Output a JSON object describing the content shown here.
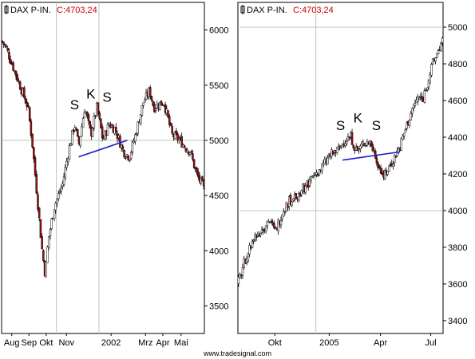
{
  "footer": {
    "credit": "www.tradesignal.com"
  },
  "colors": {
    "frame": "#000000",
    "grid": "#b8c8bc",
    "candle_up": "#ffffff",
    "candle_down": "#a01010",
    "neckline": "#1a1ad0",
    "price_readout": "#d00000"
  },
  "chart_data": [
    {
      "type": "candlestick",
      "title": "DAX P-IN.",
      "price_label": "C:4703,24",
      "y_ticks": [
        3500,
        4000,
        4500,
        5000,
        5500,
        6000
      ],
      "ylim": [
        3250,
        6250
      ],
      "x_labels": [
        {
          "label": "Aug",
          "t": 0.05
        },
        {
          "label": "Sep",
          "t": 0.135
        },
        {
          "label": "Okt",
          "t": 0.22
        },
        {
          "label": "Nov",
          "t": 0.32
        },
        {
          "label": "2002",
          "t": 0.54
        },
        {
          "label": "Mrz",
          "t": 0.71
        },
        {
          "label": "Apr",
          "t": 0.795
        },
        {
          "label": "Mai",
          "t": 0.885
        }
      ],
      "x_grid": [
        0.27,
        0.48
      ],
      "y_grid": [
        5000
      ],
      "path": [
        [
          0.0,
          5900
        ],
        [
          0.02,
          5850
        ],
        [
          0.05,
          5700
        ],
        [
          0.09,
          5500
        ],
        [
          0.13,
          5300
        ],
        [
          0.15,
          5000
        ],
        [
          0.17,
          4600
        ],
        [
          0.2,
          4000
        ],
        [
          0.215,
          3780
        ],
        [
          0.23,
          4100
        ],
        [
          0.26,
          4400
        ],
        [
          0.3,
          4600
        ],
        [
          0.33,
          4900
        ],
        [
          0.36,
          5150
        ],
        [
          0.38,
          4950
        ],
        [
          0.41,
          5300
        ],
        [
          0.44,
          5050
        ],
        [
          0.47,
          5300
        ],
        [
          0.5,
          5000
        ],
        [
          0.53,
          5150
        ],
        [
          0.56,
          5100
        ],
        [
          0.6,
          4900
        ],
        [
          0.63,
          4850
        ],
        [
          0.66,
          5050
        ],
        [
          0.7,
          5350
        ],
        [
          0.73,
          5450
        ],
        [
          0.75,
          5300
        ],
        [
          0.8,
          5350
        ],
        [
          0.84,
          5050
        ],
        [
          0.88,
          5000
        ],
        [
          0.9,
          4950
        ],
        [
          0.93,
          4900
        ],
        [
          0.96,
          4700
        ],
        [
          1.0,
          4550
        ]
      ],
      "neckline": [
        [
          0.38,
          4850
        ],
        [
          0.62,
          5000
        ]
      ],
      "annotations": [
        {
          "text": "S",
          "t": 0.36,
          "v": 5280
        },
        {
          "text": "K",
          "t": 0.44,
          "v": 5380
        },
        {
          "text": "S",
          "t": 0.52,
          "v": 5350
        }
      ]
    },
    {
      "type": "candlestick",
      "title": "DAX P-IN.",
      "price_label": "C:4703,24",
      "y_ticks": [
        3400,
        3600,
        3800,
        4000,
        4200,
        4400,
        4600,
        4800,
        5000
      ],
      "ylim": [
        3330,
        5135
      ],
      "x_labels": [
        {
          "label": "Okt",
          "t": 0.18
        },
        {
          "label": "2005",
          "t": 0.445
        },
        {
          "label": "Apr",
          "t": 0.695
        },
        {
          "label": "Jul",
          "t": 0.94
        }
      ],
      "x_grid": [
        0.38
      ],
      "y_grid": [
        4000,
        5000
      ],
      "path": [
        [
          0.0,
          3600
        ],
        [
          0.04,
          3750
        ],
        [
          0.08,
          3850
        ],
        [
          0.12,
          3900
        ],
        [
          0.15,
          3950
        ],
        [
          0.18,
          3880
        ],
        [
          0.22,
          4000
        ],
        [
          0.25,
          4050
        ],
        [
          0.3,
          4100
        ],
        [
          0.34,
          4150
        ],
        [
          0.38,
          4200
        ],
        [
          0.42,
          4250
        ],
        [
          0.45,
          4300
        ],
        [
          0.49,
          4330
        ],
        [
          0.52,
          4380
        ],
        [
          0.55,
          4400
        ],
        [
          0.58,
          4320
        ],
        [
          0.61,
          4360
        ],
        [
          0.64,
          4380
        ],
        [
          0.67,
          4300
        ],
        [
          0.7,
          4200
        ],
        [
          0.73,
          4220
        ],
        [
          0.76,
          4280
        ],
        [
          0.79,
          4350
        ],
        [
          0.82,
          4450
        ],
        [
          0.85,
          4550
        ],
        [
          0.88,
          4620
        ],
        [
          0.9,
          4600
        ],
        [
          0.92,
          4680
        ],
        [
          0.95,
          4800
        ],
        [
          0.98,
          4880
        ],
        [
          1.0,
          4930
        ]
      ],
      "neckline": [
        [
          0.51,
          4275
        ],
        [
          0.79,
          4320
        ]
      ],
      "annotations": [
        {
          "text": "S",
          "t": 0.5,
          "v": 4440
        },
        {
          "text": "K",
          "t": 0.585,
          "v": 4480
        },
        {
          "text": "S",
          "t": 0.675,
          "v": 4440
        }
      ]
    }
  ]
}
